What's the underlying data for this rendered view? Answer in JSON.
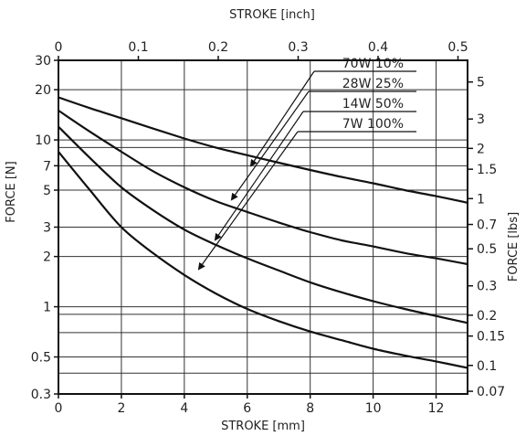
{
  "chart_data": {
    "type": "line",
    "xlabel_bottom": "STROKE [mm]",
    "xlabel_top": "STROKE [inch]",
    "ylabel_left": "FORCE [N]",
    "ylabel_right": "FORCE [lbs]",
    "xlim_mm": [
      0,
      13
    ],
    "xlim_inch": [
      0,
      0.512
    ],
    "ylim_N": [
      0.3,
      30
    ],
    "y_scale": "log",
    "grid": true,
    "x_ticks_bottom": [
      {
        "v": 0,
        "label": "0"
      },
      {
        "v": 2,
        "label": "2"
      },
      {
        "v": 4,
        "label": "4"
      },
      {
        "v": 6,
        "label": "6"
      },
      {
        "v": 8,
        "label": "8"
      },
      {
        "v": 10,
        "label": "10"
      },
      {
        "v": 12,
        "label": "12"
      }
    ],
    "x_ticks_top": [
      {
        "v": 0,
        "label": "0"
      },
      {
        "v": 0.1,
        "label": "0.1"
      },
      {
        "v": 0.2,
        "label": "0.2"
      },
      {
        "v": 0.3,
        "label": "0.3"
      },
      {
        "v": 0.4,
        "label": "0.4"
      },
      {
        "v": 0.5,
        "label": "0.5"
      }
    ],
    "y_ticks_left": [
      {
        "v": 30,
        "label": "30"
      },
      {
        "v": 20,
        "label": "20"
      },
      {
        "v": 10,
        "label": "10"
      },
      {
        "v": 7,
        "label": "7"
      },
      {
        "v": 5,
        "label": "5"
      },
      {
        "v": 3,
        "label": "3"
      },
      {
        "v": 2,
        "label": "2"
      },
      {
        "v": 1,
        "label": "1"
      },
      {
        "v": 0.5,
        "label": "0.5"
      },
      {
        "v": 0.3,
        "label": "0.3"
      }
    ],
    "y_ticks_right": [
      {
        "v": 5,
        "label": "5"
      },
      {
        "v": 3,
        "label": "3"
      },
      {
        "v": 2,
        "label": "2"
      },
      {
        "v": 1.5,
        "label": "1.5"
      },
      {
        "v": 1,
        "label": "1"
      },
      {
        "v": 0.7,
        "label": "0.7"
      },
      {
        "v": 0.5,
        "label": "0.5"
      },
      {
        "v": 0.3,
        "label": "0.3"
      },
      {
        "v": 0.2,
        "label": "0.2"
      },
      {
        "v": 0.15,
        "label": "0.15"
      },
      {
        "v": 0.1,
        "label": "0.1"
      },
      {
        "v": 0.07,
        "label": "0.07"
      }
    ],
    "x_grid": [
      0,
      2,
      4,
      6,
      8,
      10,
      12
    ],
    "y_grid": [
      30,
      20,
      10,
      9,
      7,
      5,
      3,
      2,
      1,
      0.9,
      0.7,
      0.5,
      0.4,
      0.3
    ],
    "series": [
      {
        "name": "70W 10%",
        "x": [
          0,
          1,
          2,
          3,
          4,
          5,
          6,
          7,
          8,
          9,
          10,
          11,
          12,
          13
        ],
        "y": [
          18,
          15.5,
          13.5,
          11.7,
          10.2,
          9.0,
          8.1,
          7.3,
          6.6,
          6.0,
          5.5,
          5.0,
          4.6,
          4.2
        ]
      },
      {
        "name": "28W 25%",
        "x": [
          0,
          1,
          2,
          3,
          4,
          5,
          6,
          7,
          8,
          9,
          10,
          11,
          12,
          13
        ],
        "y": [
          15,
          11.2,
          8.5,
          6.5,
          5.2,
          4.3,
          3.7,
          3.2,
          2.8,
          2.5,
          2.3,
          2.1,
          1.95,
          1.8
        ]
      },
      {
        "name": "14W 50%",
        "x": [
          0,
          1,
          2,
          3,
          4,
          5,
          6,
          7,
          8,
          9,
          10,
          11,
          12,
          13
        ],
        "y": [
          12,
          7.8,
          5.2,
          3.8,
          2.9,
          2.35,
          1.95,
          1.65,
          1.4,
          1.22,
          1.08,
          0.97,
          0.88,
          0.8
        ]
      },
      {
        "name": "7W 100%",
        "x": [
          0,
          1,
          2,
          3,
          4,
          5,
          6,
          7,
          8,
          9,
          10,
          11,
          12,
          13
        ],
        "y": [
          8.5,
          5.0,
          3.0,
          2.1,
          1.55,
          1.2,
          0.97,
          0.82,
          0.71,
          0.63,
          0.56,
          0.51,
          0.47,
          0.43
        ]
      }
    ],
    "legend": {
      "entries": [
        "70W  10%",
        "28W  25%",
        "14W  50%",
        "7W 100%"
      ]
    }
  }
}
